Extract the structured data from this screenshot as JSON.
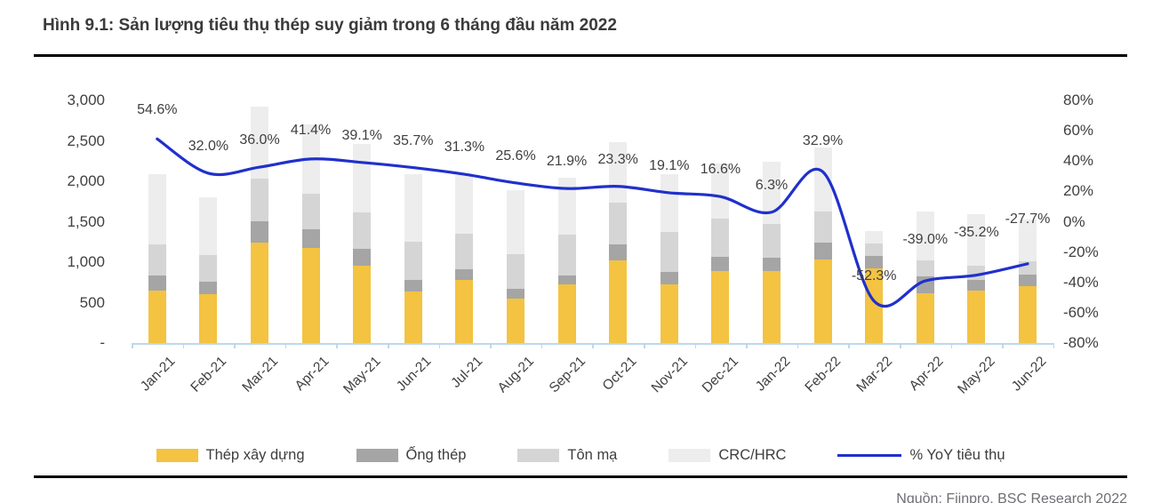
{
  "header": {
    "title": "Hình 9.1: Sản lượng tiêu thụ thép suy giảm trong 6 tháng đầu năm 2022"
  },
  "colors": {
    "bar_thep_xay_dung": "#F3C341",
    "bar_ong_thep": "#A5A5A5",
    "bar_ton_ma": "#D5D5D5",
    "bar_crc_hrc": "#EDEDED",
    "yoy_line": "#2030CC",
    "axis_text": "#404040",
    "axis_line": "#BDD7EE",
    "rule": "#000000"
  },
  "chart_data": {
    "type": "bar",
    "subtype": "stacked-bars-with-line-overlay",
    "categories": [
      "Jan-21",
      "Feb-21",
      "Mar-21",
      "Apr-21",
      "May-21",
      "Jun-21",
      "Jul-21",
      "Aug-21",
      "Sep-21",
      "Oct-21",
      "Nov-21",
      "Dec-21",
      "Jan-22",
      "Feb-22",
      "Mar-22",
      "Apr-22",
      "May-22",
      "Jun-22"
    ],
    "series": [
      {
        "name": "Thép xây dựng",
        "type": "bar",
        "color": "#F3C341",
        "values": [
          650,
          600,
          1240,
          1180,
          960,
          640,
          780,
          550,
          730,
          1020,
          730,
          895,
          895,
          1030,
          920,
          620,
          650,
          700
        ]
      },
      {
        "name": "Ống thép",
        "type": "bar",
        "color": "#A5A5A5",
        "values": [
          180,
          160,
          270,
          230,
          200,
          140,
          135,
          120,
          110,
          195,
          145,
          175,
          165,
          210,
          160,
          200,
          130,
          145
        ]
      },
      {
        "name": "Tôn mạ",
        "type": "bar",
        "color": "#D5D5D5",
        "values": [
          390,
          330,
          520,
          440,
          460,
          475,
          440,
          425,
          505,
          520,
          495,
          465,
          410,
          390,
          150,
          200,
          180,
          170
        ]
      },
      {
        "name": "CRC/HRC",
        "type": "bar",
        "color": "#EDEDED",
        "values": [
          870,
          710,
          890,
          850,
          840,
          830,
          720,
          795,
          700,
          745,
          720,
          690,
          770,
          790,
          160,
          610,
          630,
          515
        ]
      },
      {
        "name": "% YoY tiêu thụ",
        "type": "line",
        "axis": "right",
        "color": "#2030CC",
        "values": [
          54.6,
          32.0,
          36.0,
          41.4,
          39.1,
          35.7,
          31.3,
          25.6,
          21.9,
          23.3,
          19.1,
          16.6,
          6.3,
          32.9,
          -52.3,
          -39.0,
          -35.2,
          -27.7
        ]
      }
    ],
    "point_labels": [
      "54.6%",
      "32.0%",
      "36.0%",
      "41.4%",
      "39.1%",
      "35.7%",
      "31.3%",
      "25.6%",
      "21.9%",
      "23.3%",
      "19.1%",
      "16.6%",
      "6.3%",
      "32.9%",
      "-52.3%",
      "-39.0%",
      "-35.2%",
      "-27.7%"
    ],
    "left_axis": {
      "tick_labels": [
        "3,000",
        "2,500",
        "2,000",
        "1,500",
        "1,000",
        "500",
        "-"
      ],
      "tick_values": [
        3000,
        2500,
        2000,
        1500,
        1000,
        500,
        0
      ],
      "range": [
        0,
        3000
      ]
    },
    "right_axis": {
      "tick_labels": [
        "80%",
        "60%",
        "40%",
        "20%",
        "0%",
        "-20%",
        "-40%",
        "-60%",
        "-80%"
      ],
      "tick_values": [
        80,
        60,
        40,
        20,
        0,
        -20,
        -40,
        -60,
        -80
      ],
      "range": [
        -80,
        80
      ]
    },
    "grid": false,
    "legend_position": "bottom",
    "bar_stacked": true
  },
  "footer": {
    "source_text": "Nguồn: Fiinpro, BSC Research 2022"
  }
}
